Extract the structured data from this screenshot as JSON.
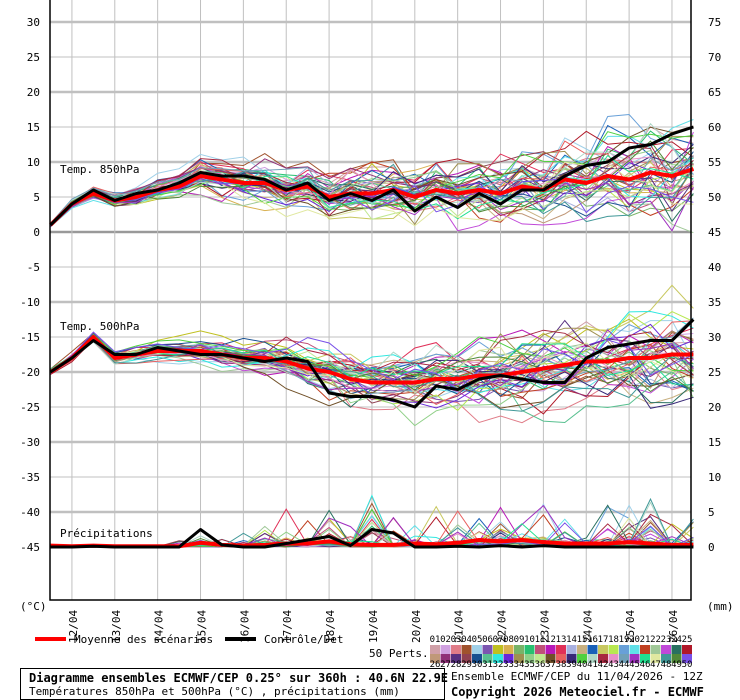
{
  "chart_data": {
    "type": "line",
    "x_unit_step_hours": 12,
    "x_start": "11/04 12Z",
    "x_tick_labels": [
      "12/04",
      "13/04",
      "14/04",
      "15/04",
      "16/04",
      "17/04",
      "18/04",
      "19/04",
      "20/04",
      "21/04",
      "22/04",
      "23/04",
      "24/04",
      "25/04",
      "26/04"
    ],
    "left_axis": {
      "unit": "(°C)",
      "range": [
        -45,
        30
      ],
      "ticks": [
        30,
        25,
        20,
        15,
        10,
        5,
        0,
        -5,
        -10,
        -15,
        -20,
        -25,
        -30,
        -35,
        -40,
        -45
      ]
    },
    "right_axis": {
      "unit": "(mm)",
      "ticks": [
        75,
        70,
        65,
        60,
        55,
        50,
        45,
        40,
        35,
        30,
        25,
        20,
        15,
        10,
        5,
        0
      ]
    },
    "grid": true,
    "panels": [
      {
        "label": "Temp. 850hPa",
        "mean": [
          1,
          4,
          5.5,
          4.5,
          5,
          6,
          6.5,
          8,
          7.5,
          7,
          7,
          6,
          6.5,
          5,
          5.5,
          5.5,
          6,
          5,
          6,
          5.5,
          6,
          5.5,
          6.5,
          6,
          7.5,
          7,
          8,
          7.5,
          8.5,
          8,
          9
        ],
        "control": [
          1,
          4,
          6,
          4.5,
          5.5,
          6,
          7,
          8.5,
          8,
          8,
          7.5,
          6,
          7,
          4.5,
          5.5,
          4.5,
          6,
          3,
          5,
          3.5,
          5.5,
          4,
          6,
          6,
          8,
          9.5,
          10,
          12,
          12.5,
          14,
          15
        ],
        "ensemble_spread": [
          0.2,
          0.3,
          0.4,
          0.5,
          0.6,
          0.8,
          1,
          1.2,
          1.3,
          1.4,
          1.5,
          1.6,
          1.7,
          1.8,
          1.9,
          2,
          2,
          2.1,
          2.2,
          2.3,
          2.4,
          2.5,
          2.6,
          2.7,
          2.8,
          2.9,
          3,
          3.1,
          3.2,
          3.3,
          3.4
        ]
      },
      {
        "label": "Temp. 500hPa",
        "mean": [
          -20,
          -18,
          -15,
          -18,
          -17.5,
          -17,
          -17,
          -17,
          -17.5,
          -18,
          -18,
          -18.5,
          -19.5,
          -20,
          -21,
          -21.5,
          -21.5,
          -21.5,
          -21,
          -21,
          -20.5,
          -20.5,
          -20,
          -19.5,
          -19,
          -18.5,
          -18.5,
          -18,
          -18,
          -17.5,
          -17.5
        ],
        "control": [
          -20,
          -18,
          -15.5,
          -17.5,
          -17.5,
          -16.5,
          -17,
          -17.5,
          -17.5,
          -18,
          -18.5,
          -18,
          -18.5,
          -23,
          -23.5,
          -23.5,
          -24,
          -25,
          -22,
          -22.5,
          -21,
          -20.5,
          -21,
          -21.5,
          -21.5,
          -18,
          -16.5,
          -16,
          -15.5,
          -15.5,
          -12.5
        ],
        "ensemble_spread": [
          0.2,
          0.3,
          0.3,
          0.4,
          0.5,
          0.6,
          0.7,
          0.8,
          0.9,
          1,
          1.1,
          1.3,
          1.5,
          1.7,
          1.8,
          1.9,
          2,
          2,
          2.1,
          2.2,
          2.3,
          2.4,
          2.5,
          2.6,
          2.7,
          2.8,
          2.9,
          3,
          3.1,
          3.2,
          3.3
        ]
      },
      {
        "label": "Précipitations",
        "axis": "right",
        "mean": [
          0.2,
          0.1,
          0.2,
          0.1,
          0.1,
          0.1,
          0.1,
          0.6,
          0.3,
          0.2,
          0.3,
          0.5,
          0.5,
          0.8,
          0.4,
          0.3,
          0.3,
          0.5,
          0.4,
          0.6,
          1,
          0.8,
          1,
          0.7,
          0.5,
          0.5,
          0.5,
          0.7,
          0.5,
          0.3,
          0.3
        ],
        "control": [
          0,
          0,
          0.1,
          0,
          0,
          0,
          0,
          2.5,
          0.3,
          0,
          0,
          0.5,
          1,
          1.5,
          0.2,
          2.5,
          2,
          0,
          0,
          0.1,
          0,
          0.2,
          0,
          0.2,
          0,
          0,
          0,
          0,
          0,
          0,
          0
        ],
        "ensemble_max": [
          0.3,
          0.3,
          0.3,
          0.3,
          0.3,
          0.5,
          1,
          2,
          2,
          2.5,
          5,
          7,
          7,
          8,
          10,
          9,
          6,
          5,
          7,
          8,
          9,
          10,
          10,
          8,
          8,
          10,
          10,
          9,
          10,
          8,
          6
        ]
      }
    ],
    "legend": {
      "mean_label": "Moyenne des scénarios",
      "control_label": "Contrôle/Det",
      "perts_label": "50 Perts.",
      "mean_color": "#ff0000",
      "control_color": "#000000",
      "pert_numbers": [
        "01",
        "02",
        "03",
        "04",
        "05",
        "06",
        "07",
        "08",
        "09",
        "10",
        "11",
        "12",
        "13",
        "14",
        "15",
        "16",
        "17",
        "18",
        "19",
        "20",
        "21",
        "22",
        "23",
        "24",
        "25",
        "26",
        "27",
        "28",
        "29",
        "30",
        "31",
        "32",
        "33",
        "34",
        "35",
        "36",
        "37",
        "38",
        "39",
        "40",
        "41",
        "42",
        "43",
        "44",
        "45",
        "46",
        "47",
        "48",
        "49",
        "50"
      ],
      "pert_colors": [
        "#d0a0a8",
        "#d0a0e0",
        "#e07c88",
        "#a0522d",
        "#a0d0e8",
        "#7b55b0",
        "#c0c020",
        "#d8b050",
        "#78b468",
        "#28c070",
        "#c05078",
        "#b818b8",
        "#e03058",
        "#a8b0e0",
        "#c8b080",
        "#1860b8",
        "#c8c860",
        "#b8e850",
        "#68a0d8",
        "#60e0e8",
        "#c04020",
        "#a0c898",
        "#c048d8",
        "#287060",
        "#b01828",
        "#c09878",
        "#903078",
        "#583080",
        "#904050",
        "#185090",
        "#58c090",
        "#30e8e0",
        "#6828d8",
        "#a09050",
        "#90d088",
        "#c0e890",
        "#705028",
        "#e86060",
        "#382878",
        "#50d040",
        "#b0d8c8",
        "#a82840",
        "#e890c8",
        "#70a0b8",
        "#a030c0",
        "#20e090",
        "#e0e8a0",
        "#409898",
        "#508838",
        "#7850e8"
      ]
    }
  },
  "footer": {
    "title": "Diagramme ensembles ECMWF/CEP 0.25° sur 360h : 40.6N 22.9E",
    "subtitle": "Températures 850hPa et 500hPa (°C) , précipitations (mm)",
    "run": "Ensemble ECMWF/CEP du 11/04/2026 - 12Z",
    "copyright": "Copyright 2026 Meteociel.fr - ECMWF"
  }
}
